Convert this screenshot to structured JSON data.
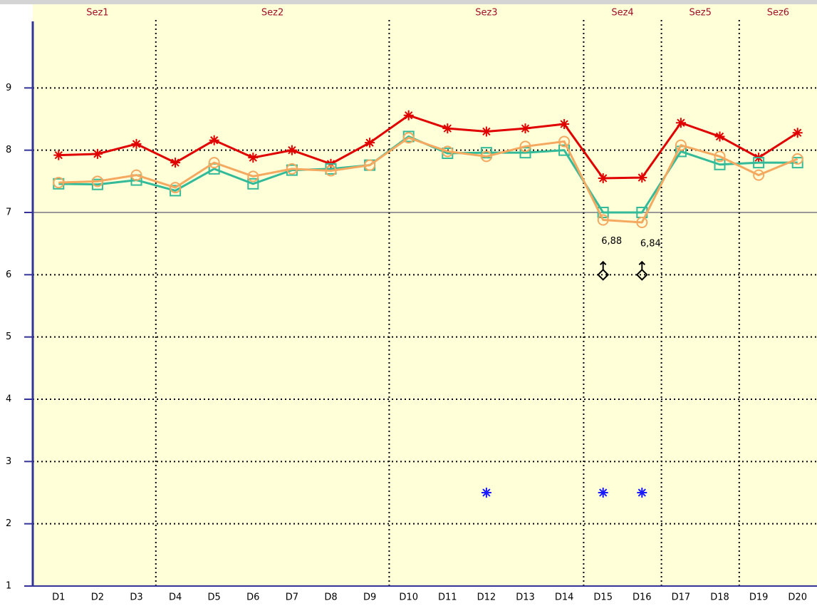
{
  "chart_data": {
    "type": "line",
    "categories": [
      "D1",
      "D2",
      "D3",
      "D4",
      "D5",
      "D6",
      "D7",
      "D8",
      "D9",
      "D10",
      "D11",
      "D12",
      "D13",
      "D14",
      "D15",
      "D16",
      "D17",
      "D18",
      "D19",
      "D20"
    ],
    "sections": [
      {
        "label": "Sez1",
        "span": 3
      },
      {
        "label": "Sez2",
        "span": 6
      },
      {
        "label": "Sez3",
        "span": 5
      },
      {
        "label": "Sez4",
        "span": 2
      },
      {
        "label": "Sez5",
        "span": 2
      },
      {
        "label": "Sez6",
        "span": 2
      }
    ],
    "series": [
      {
        "color": "#e00000",
        "marker": "asterisk",
        "line": true,
        "values": [
          7.92,
          7.94,
          8.1,
          7.8,
          8.16,
          7.88,
          8.0,
          7.78,
          8.12,
          8.56,
          8.35,
          8.3,
          8.35,
          8.42,
          7.55,
          7.56,
          8.44,
          8.22,
          7.88,
          8.28
        ]
      },
      {
        "color": "#33bb99",
        "marker": "square",
        "line": true,
        "values": [
          7.46,
          7.45,
          7.52,
          7.35,
          7.7,
          7.46,
          7.68,
          7.7,
          7.76,
          8.22,
          7.95,
          7.96,
          7.96,
          8.0,
          7.0,
          7.0,
          7.98,
          7.77,
          7.8,
          7.8
        ]
      },
      {
        "color": "#f4a860",
        "marker": "circle",
        "line": true,
        "values": [
          7.48,
          7.5,
          7.6,
          7.4,
          7.8,
          7.58,
          7.7,
          7.67,
          7.76,
          8.2,
          7.98,
          7.9,
          8.06,
          8.14,
          6.88,
          6.84,
          8.08,
          7.9,
          7.6,
          7.86
        ],
        "value_labels": [
          null,
          null,
          null,
          null,
          null,
          null,
          null,
          null,
          null,
          null,
          null,
          null,
          null,
          null,
          "6,88",
          "6,84",
          null,
          null,
          null,
          null
        ]
      },
      {
        "color": "#000000",
        "marker": "diamond",
        "line": false,
        "values": [
          null,
          null,
          null,
          null,
          null,
          null,
          null,
          null,
          null,
          null,
          null,
          null,
          null,
          null,
          6,
          6,
          null,
          null,
          null,
          null
        ]
      },
      {
        "color": "#1a1aff",
        "marker": "asterisk",
        "line": false,
        "values": [
          null,
          null,
          null,
          null,
          null,
          null,
          null,
          null,
          null,
          null,
          null,
          2.5,
          null,
          null,
          2.5,
          2.5,
          null,
          null,
          null,
          null
        ]
      }
    ],
    "ylim": [
      1,
      10
    ],
    "yticks": [
      1,
      2,
      3,
      4,
      5,
      6,
      7,
      8,
      9
    ],
    "reference_line": 7,
    "grid": true
  }
}
